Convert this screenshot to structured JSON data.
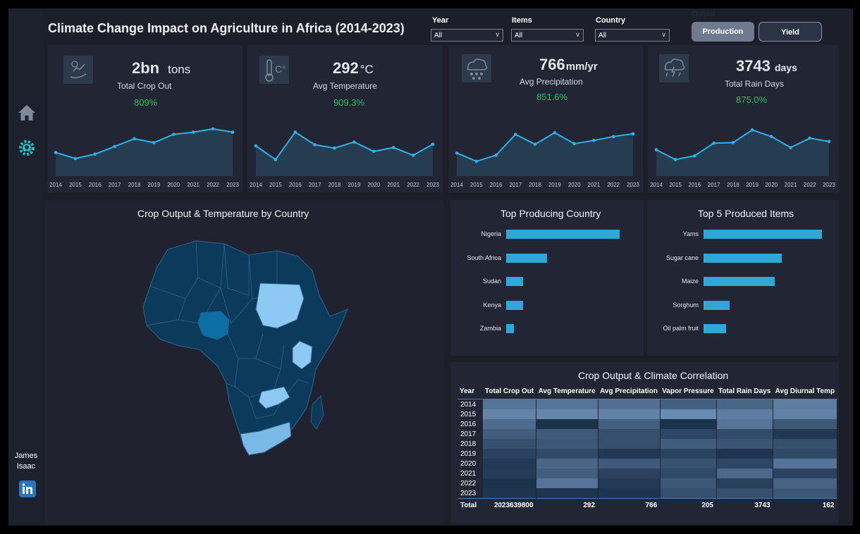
{
  "header": {
    "title": "Climate Change Impact on Agriculture in Africa (2014-2023)"
  },
  "filters": [
    {
      "label": "Year",
      "value": "All"
    },
    {
      "label": "Items",
      "value": "All"
    },
    {
      "label": "Country",
      "value": "All"
    }
  ],
  "output_toggle": {
    "label": "Output",
    "options": [
      "Production",
      "Yield"
    ],
    "active": "Production"
  },
  "sidebar": {
    "author_first": "James",
    "author_last": "Isaac",
    "icons": [
      "home-icon",
      "settings-bulb-icon",
      "linkedin-icon"
    ]
  },
  "years": [
    "2014",
    "2015",
    "2016",
    "2017",
    "2018",
    "2019",
    "2020",
    "2021",
    "2022",
    "2023"
  ],
  "kpis": [
    {
      "value": "2bn",
      "unit": "tons",
      "label": "Total Crop Out",
      "change": "809%",
      "trend": [
        43,
        32,
        40,
        54,
        68,
        61,
        76,
        80,
        86,
        80
      ]
    },
    {
      "value": "292",
      "unit": "°C",
      "label": "Avg Temperature",
      "change": "909.3%",
      "trend": [
        55,
        30,
        80,
        57,
        51,
        62,
        45,
        52,
        38,
        58
      ]
    },
    {
      "value": "766",
      "unit": "mm/yr",
      "label": "Avg Precipitation",
      "change": "851.6%",
      "trend": [
        42,
        27,
        38,
        76,
        58,
        79,
        59,
        65,
        72,
        77
      ]
    },
    {
      "value": "3743",
      "unit": "days",
      "label": "Total Rain Days",
      "change": "875.0%",
      "trend": [
        48,
        30,
        37,
        60,
        61,
        84,
        72,
        52,
        69,
        63
      ]
    }
  ],
  "map": {
    "title": "Crop Output & Temperature by Country"
  },
  "top_country": {
    "title": "Top Producing Country",
    "chart_data": {
      "type": "bar",
      "categories": [
        "Nigeria",
        "South Africa",
        "Sudan",
        "Kenya",
        "Zambia"
      ],
      "values": [
        100,
        36,
        15,
        15,
        7
      ]
    }
  },
  "top_items": {
    "title": "Top 5 Produced Items",
    "chart_data": {
      "type": "bar",
      "categories": [
        "Yams",
        "Sugar cane",
        "Maize",
        "Sorghum",
        "Oil palm fruit"
      ],
      "values": [
        100,
        66,
        60,
        22,
        19
      ]
    }
  },
  "correlation": {
    "title": "Crop Output & Climate Correlation",
    "columns": [
      "Year",
      "Total Crop Out",
      "Avg Temperature",
      "Avg Precipitation",
      "Vapor Pressure",
      "Total Rain Days",
      "Avg Diurnal Temp"
    ],
    "rows": [
      {
        "year": "2014",
        "shades": [
          0.62,
          0.62,
          0.58,
          0.45,
          0.5,
          0.7
        ]
      },
      {
        "year": "2015",
        "shades": [
          0.75,
          0.78,
          0.74,
          0.82,
          0.7,
          0.72
        ]
      },
      {
        "year": "2016",
        "shades": [
          0.55,
          0.05,
          0.45,
          0.05,
          0.62,
          0.38
        ]
      },
      {
        "year": "2017",
        "shades": [
          0.42,
          0.4,
          0.3,
          0.22,
          0.28,
          0.1
        ]
      },
      {
        "year": "2018",
        "shades": [
          0.3,
          0.38,
          0.3,
          0.42,
          0.35,
          0.3
        ]
      },
      {
        "year": "2019",
        "shades": [
          0.2,
          0.25,
          0.1,
          0.2,
          0.08,
          0.25
        ]
      },
      {
        "year": "2020",
        "shades": [
          0.12,
          0.5,
          0.4,
          0.32,
          0.22,
          0.62
        ]
      },
      {
        "year": "2021",
        "shades": [
          0.14,
          0.42,
          0.2,
          0.25,
          0.52,
          0.2
        ]
      },
      {
        "year": "2022",
        "shades": [
          0.05,
          0.62,
          0.12,
          0.38,
          0.18,
          0.48
        ]
      },
      {
        "year": "2023",
        "shades": [
          0.08,
          0.08,
          0.08,
          0.3,
          0.3,
          0.38
        ]
      }
    ],
    "total": {
      "label": "Total",
      "values": [
        "2023639800",
        "292",
        "766",
        "205",
        "3743",
        "162"
      ]
    }
  },
  "colors": {
    "accent": "#2fa8d8",
    "positive": "#25c05a",
    "map_base": "#0b3a5a",
    "map_highlight": "#8ec9f4",
    "map_nigeria": "#0d6ea5"
  }
}
